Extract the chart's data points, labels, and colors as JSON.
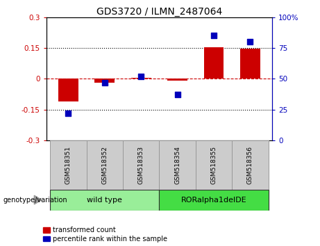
{
  "title": "GDS3720 / ILMN_2487064",
  "categories": [
    "GSM518351",
    "GSM518352",
    "GSM518353",
    "GSM518354",
    "GSM518355",
    "GSM518356"
  ],
  "bar_values": [
    -0.11,
    -0.02,
    0.005,
    -0.01,
    0.155,
    0.147
  ],
  "scatter_values": [
    22,
    47,
    52,
    37,
    85,
    80
  ],
  "ylim_left": [
    -0.3,
    0.3
  ],
  "ylim_right": [
    0,
    100
  ],
  "yticks_left": [
    -0.3,
    -0.15,
    0,
    0.15,
    0.3
  ],
  "yticks_right": [
    0,
    25,
    50,
    75,
    100
  ],
  "ytick_labels_right": [
    "0",
    "25",
    "50",
    "75",
    "100%"
  ],
  "bar_color": "#cc0000",
  "scatter_color": "#0000bb",
  "hline_color": "#cc0000",
  "dotted_color": "#000000",
  "groups": [
    {
      "label": "wild type",
      "indices": [
        0,
        1,
        2
      ],
      "color": "#99ee99"
    },
    {
      "label": "RORalpha1delDE",
      "indices": [
        3,
        4,
        5
      ],
      "color": "#44dd44"
    }
  ],
  "group_label": "genotype/variation",
  "legend_bar_label": "transformed count",
  "legend_scatter_label": "percentile rank within the sample",
  "bg_color": "#ffffff",
  "plot_bg_color": "#ffffff",
  "sample_box_color": "#cccccc",
  "sample_box_edge": "#999999"
}
